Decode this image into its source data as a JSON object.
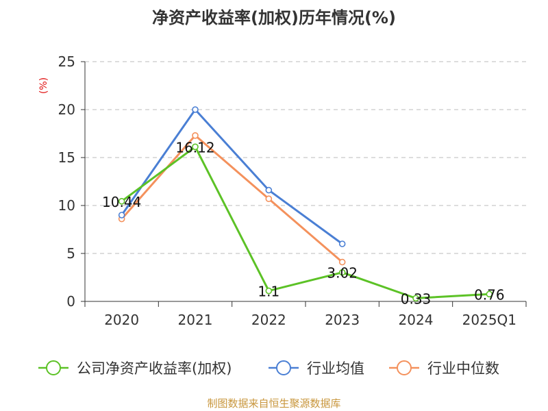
{
  "chart_data": {
    "type": "line",
    "title": "净资产收益率(加权)历年情况(%)",
    "ylabel": "(%)",
    "xlabel": "",
    "categories": [
      "2020",
      "2021",
      "2022",
      "2023",
      "2024",
      "2025Q1"
    ],
    "ylim": [
      0,
      25
    ],
    "yticks": [
      0,
      5,
      10,
      15,
      20,
      25
    ],
    "grid": true,
    "legend_position": "bottom",
    "series": [
      {
        "name": "公司净资产收益率(加权)",
        "color": "#5cc226",
        "values": [
          10.44,
          16.12,
          1.1,
          3.02,
          0.33,
          0.76
        ],
        "labels": [
          "10.44",
          "16.12",
          "1.1",
          "3.02",
          "0.33",
          "0.76"
        ]
      },
      {
        "name": "行业均值",
        "color": "#4a7fd4",
        "values": [
          9.0,
          20.0,
          11.6,
          6.0,
          null,
          null
        ]
      },
      {
        "name": "行业中位数",
        "color": "#f4915c",
        "values": [
          8.6,
          17.3,
          10.7,
          4.1,
          null,
          null
        ]
      }
    ],
    "source": "制图数据来自恒生聚源数据库"
  }
}
